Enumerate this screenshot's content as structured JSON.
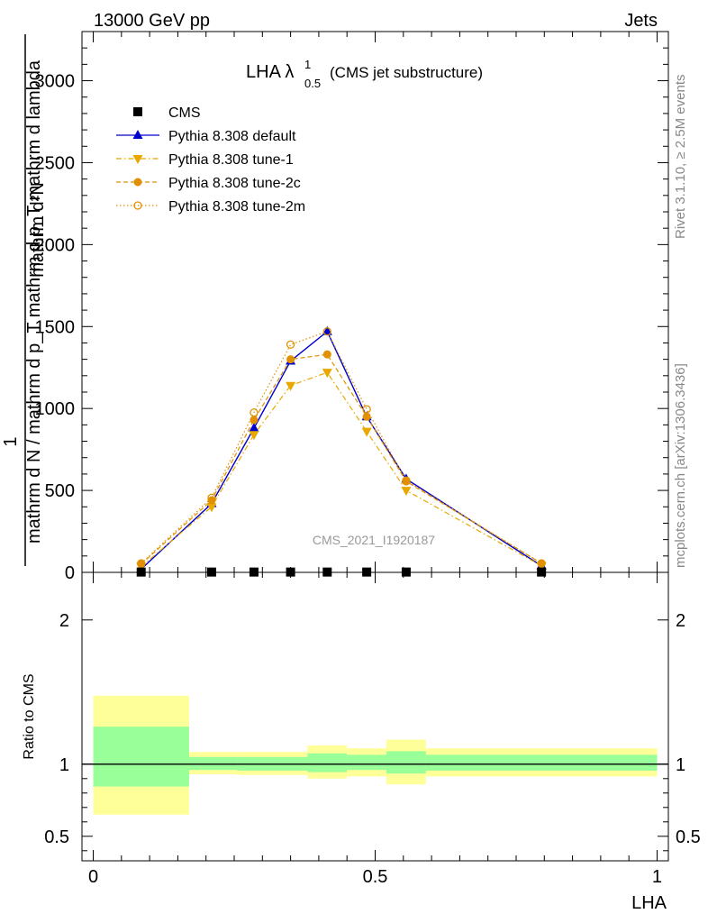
{
  "header": {
    "energy_label": "13000 GeV pp",
    "process_label": "Jets"
  },
  "side_labels": {
    "rivet": "Rivet 3.1.10, ≥ 2.5M events",
    "mcplots": "mcplots.cern.ch [arXiv:1306.3436]"
  },
  "chart_data": [
    {
      "type": "line",
      "title": "LHA λ",
      "title_sup": "1",
      "title_sub": "0.5",
      "title_suffix": "(CMS jet substructure)",
      "watermark": "CMS_2021_I1920187",
      "ylabel_numerator": "1",
      "ylabel_denominator": "mathrm d N / mathrm d p_T mathrm d p_T mathrm d lambda",
      "ylabel_top": "mathrm d²N",
      "ylim": [
        0,
        3300
      ],
      "yticks": [
        0,
        500,
        1000,
        1500,
        2000,
        2500,
        3000
      ],
      "ytick_labels": [
        "0",
        "500",
        "1000",
        "1500",
        "2000",
        "2500",
        "3000"
      ],
      "xlim": [
        -0.02,
        1.02
      ],
      "legend_position": "top-left",
      "series": [
        {
          "name": "CMS",
          "color": "#000000",
          "marker": "square",
          "x": [
            0.085,
            0.21,
            0.285,
            0.35,
            0.415,
            0.485,
            0.555,
            0.795
          ],
          "values": [
            2,
            2,
            2,
            2,
            2,
            2,
            2,
            2
          ]
        },
        {
          "name": "Pythia 8.308 default",
          "color": "#0000cc",
          "marker": "triangle-up",
          "dash": "solid",
          "x": [
            0.085,
            0.21,
            0.285,
            0.35,
            0.415,
            0.485,
            0.555,
            0.795
          ],
          "values": [
            20,
            420,
            880,
            1290,
            1470,
            950,
            570,
            40
          ]
        },
        {
          "name": "Pythia 8.308 tune-1",
          "color": "#e8a800",
          "marker": "triangle-down",
          "dash": "dashdot",
          "x": [
            0.085,
            0.21,
            0.285,
            0.35,
            0.415,
            0.485,
            0.555,
            0.795
          ],
          "values": [
            35,
            400,
            840,
            1140,
            1220,
            860,
            500,
            40
          ]
        },
        {
          "name": "Pythia 8.308 tune-2c",
          "color": "#e09000",
          "marker": "circle-filled",
          "dash": "dashed",
          "x": [
            0.085,
            0.21,
            0.285,
            0.35,
            0.415,
            0.485,
            0.555,
            0.795
          ],
          "values": [
            50,
            440,
            930,
            1300,
            1330,
            950,
            555,
            55
          ]
        },
        {
          "name": "Pythia 8.308 tune-2m",
          "color": "#e09000",
          "marker": "circle-open",
          "dash": "dotted",
          "x": [
            0.085,
            0.21,
            0.285,
            0.35,
            0.415,
            0.485,
            0.555,
            0.795
          ],
          "values": [
            55,
            455,
            975,
            1390,
            1470,
            995,
            560,
            55
          ]
        }
      ]
    },
    {
      "type": "area",
      "ylabel": "Ratio to CMS",
      "xlabel": "LHA",
      "ylim": [
        0.33,
        2.33
      ],
      "yticks": [
        0.5,
        1,
        2
      ],
      "ytick_labels": [
        "0.5",
        "1",
        "2"
      ],
      "xlim": [
        -0.02,
        1.02
      ],
      "xticks": [
        0,
        0.5,
        1
      ],
      "xtick_labels": [
        "0",
        "0.5",
        "1"
      ],
      "reference_line": 1,
      "band_colors": {
        "inner": "#99ff99",
        "outer": "#ffff99"
      },
      "bins": [
        {
          "lo": 0.0,
          "hi": 0.17,
          "inner": [
            0.845,
            1.26
          ],
          "outer": [
            0.65,
            1.475
          ]
        },
        {
          "lo": 0.17,
          "hi": 0.255,
          "inner": [
            0.96,
            1.05
          ],
          "outer": [
            0.93,
            1.085
          ]
        },
        {
          "lo": 0.255,
          "hi": 0.38,
          "inner": [
            0.955,
            1.05
          ],
          "outer": [
            0.925,
            1.085
          ]
        },
        {
          "lo": 0.38,
          "hi": 0.45,
          "inner": [
            0.945,
            1.075
          ],
          "outer": [
            0.9,
            1.13
          ]
        },
        {
          "lo": 0.45,
          "hi": 0.52,
          "inner": [
            0.96,
            1.065
          ],
          "outer": [
            0.915,
            1.11
          ]
        },
        {
          "lo": 0.52,
          "hi": 0.59,
          "inner": [
            0.935,
            1.09
          ],
          "outer": [
            0.86,
            1.17
          ]
        },
        {
          "lo": 0.59,
          "hi": 1.0,
          "inner": [
            0.955,
            1.065
          ],
          "outer": [
            0.915,
            1.11
          ]
        }
      ]
    }
  ]
}
